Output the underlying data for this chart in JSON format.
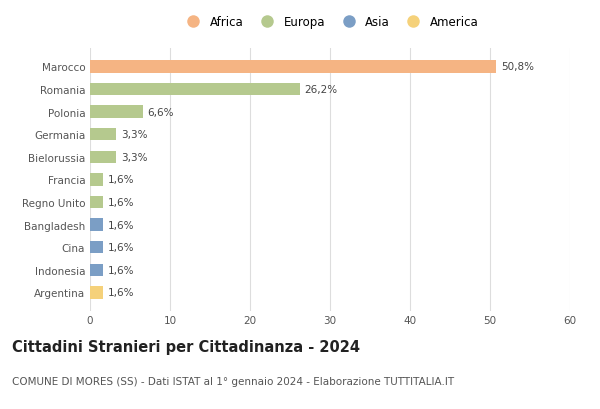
{
  "categories": [
    "Marocco",
    "Romania",
    "Polonia",
    "Germania",
    "Bielorussia",
    "Francia",
    "Regno Unito",
    "Bangladesh",
    "Cina",
    "Indonesia",
    "Argentina"
  ],
  "values": [
    50.8,
    26.2,
    6.6,
    3.3,
    3.3,
    1.6,
    1.6,
    1.6,
    1.6,
    1.6,
    1.6
  ],
  "labels": [
    "50,8%",
    "26,2%",
    "6,6%",
    "3,3%",
    "3,3%",
    "1,6%",
    "1,6%",
    "1,6%",
    "1,6%",
    "1,6%",
    "1,6%"
  ],
  "continents": [
    "Africa",
    "Europa",
    "Europa",
    "Europa",
    "Europa",
    "Europa",
    "Europa",
    "Asia",
    "Asia",
    "Asia",
    "America"
  ],
  "colors": {
    "Africa": "#F5B483",
    "Europa": "#B5C98E",
    "Asia": "#7B9EC5",
    "America": "#F5D17A"
  },
  "xlim": [
    0,
    60
  ],
  "xticks": [
    0,
    10,
    20,
    30,
    40,
    50,
    60
  ],
  "title": "Cittadini Stranieri per Cittadinanza - 2024",
  "subtitle": "COMUNE DI MORES (SS) - Dati ISTAT al 1° gennaio 2024 - Elaborazione TUTTITALIA.IT",
  "title_fontsize": 10.5,
  "subtitle_fontsize": 7.5,
  "label_fontsize": 7.5,
  "tick_fontsize": 7.5,
  "legend_fontsize": 8.5,
  "bg_color": "#ffffff",
  "grid_color": "#dddddd",
  "bar_height": 0.55,
  "legend_order": [
    "Africa",
    "Europa",
    "Asia",
    "America"
  ]
}
